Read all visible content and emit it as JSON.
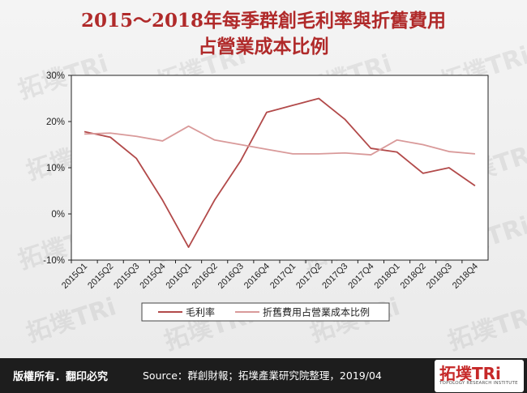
{
  "title_line1": "2015～2018年每季群創毛利率與折舊費用",
  "title_line2": "占營業成本比例",
  "footer_left": "版權所有．翻印必究",
  "footer_source": "Source：群創財報；拓墣產業研究院整理，2019/04",
  "logo_text_a": "拓墣",
  "logo_text_b": "TRi",
  "logo_tagline": "TOPOLOGY RESEARCH INSTITUTE",
  "watermark_text": "拓墣TRi",
  "colors": {
    "series1": "#b24a4a",
    "series2": "#d99a9a",
    "title": "#b02a2a"
  },
  "chart_data": {
    "type": "line",
    "title": "2015～2018年每季群創毛利率與折舊費用占營業成本比例",
    "categories": [
      "2015Q1",
      "2015Q2",
      "2015Q3",
      "2015Q4",
      "2016Q1",
      "2016Q2",
      "2016Q3",
      "2016Q4",
      "2017Q1",
      "2017Q2",
      "2017Q3",
      "2017Q4",
      "2018Q1",
      "2018Q2",
      "2018Q3",
      "2018Q4"
    ],
    "yticks": [
      "30%",
      "20%",
      "10%",
      "0%",
      "-10%"
    ],
    "ytick_values": [
      30,
      20,
      10,
      0,
      -10
    ],
    "ylim": [
      -10,
      30
    ],
    "series": [
      {
        "name": "毛利率",
        "values": [
          17.8,
          16.6,
          12.0,
          3.0,
          -7.2,
          3.0,
          11.5,
          22.0,
          23.5,
          25.0,
          20.5,
          14.2,
          13.4,
          8.8,
          10.0,
          6.1
        ]
      },
      {
        "name": "折舊費用占營業成本比例",
        "values": [
          17.3,
          17.5,
          16.8,
          15.8,
          19.0,
          16.0,
          15.0,
          14.0,
          13.0,
          13.0,
          13.2,
          12.8,
          16.0,
          15.0,
          13.5,
          13.0
        ]
      }
    ],
    "legend": {
      "position": "bottom",
      "labels": [
        "毛利率",
        "折舊費用占營業成本比例"
      ]
    },
    "grid": false
  }
}
